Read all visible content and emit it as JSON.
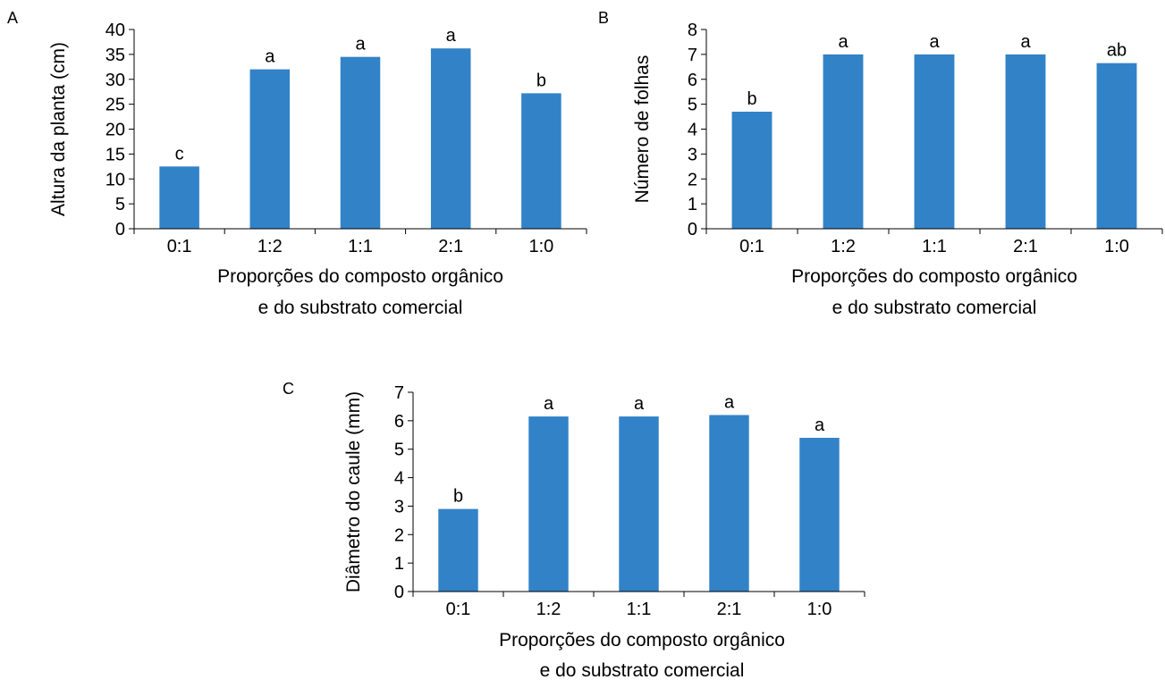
{
  "colors": {
    "bar": "#3282c8",
    "axis": "#000000"
  },
  "chart_data": [
    {
      "panel_label": "A",
      "type": "bar",
      "categories": [
        "0:1",
        "1:2",
        "1:1",
        "2:1",
        "1:0"
      ],
      "values": [
        12.5,
        32,
        34.5,
        36.2,
        27.2
      ],
      "significance": [
        "c",
        "a",
        "a",
        "a",
        "b"
      ],
      "ylabel": "Altura da planta (cm)",
      "xlabel_lines": [
        "Proporções do composto orgânico",
        "e do substrato comercial"
      ],
      "ylim": [
        0,
        40
      ],
      "yticks": [
        0,
        5,
        10,
        15,
        20,
        25,
        30,
        35,
        40
      ],
      "grid": false
    },
    {
      "panel_label": "B",
      "type": "bar",
      "categories": [
        "0:1",
        "1:2",
        "1:1",
        "2:1",
        "1:0"
      ],
      "values": [
        4.7,
        7,
        7,
        7,
        6.65
      ],
      "significance": [
        "b",
        "a",
        "a",
        "a",
        "ab"
      ],
      "ylabel": "Número de folhas",
      "xlabel_lines": [
        "Proporções do composto orgânico",
        "e do substrato comercial"
      ],
      "ylim": [
        0,
        8
      ],
      "yticks": [
        0,
        1,
        2,
        3,
        4,
        5,
        6,
        7,
        8
      ],
      "grid": false
    },
    {
      "panel_label": "C",
      "type": "bar",
      "categories": [
        "0:1",
        "1:2",
        "1:1",
        "2:1",
        "1:0"
      ],
      "values": [
        2.9,
        6.15,
        6.15,
        6.2,
        5.4
      ],
      "significance": [
        "b",
        "a",
        "a",
        "a",
        "a"
      ],
      "ylabel": "Diâmetro do caule (mm)",
      "xlabel_lines": [
        "Proporções do composto orgânico",
        "e do substrato comercial"
      ],
      "ylim": [
        0,
        7
      ],
      "yticks": [
        0,
        1,
        2,
        3,
        4,
        5,
        6,
        7
      ],
      "grid": false
    }
  ]
}
